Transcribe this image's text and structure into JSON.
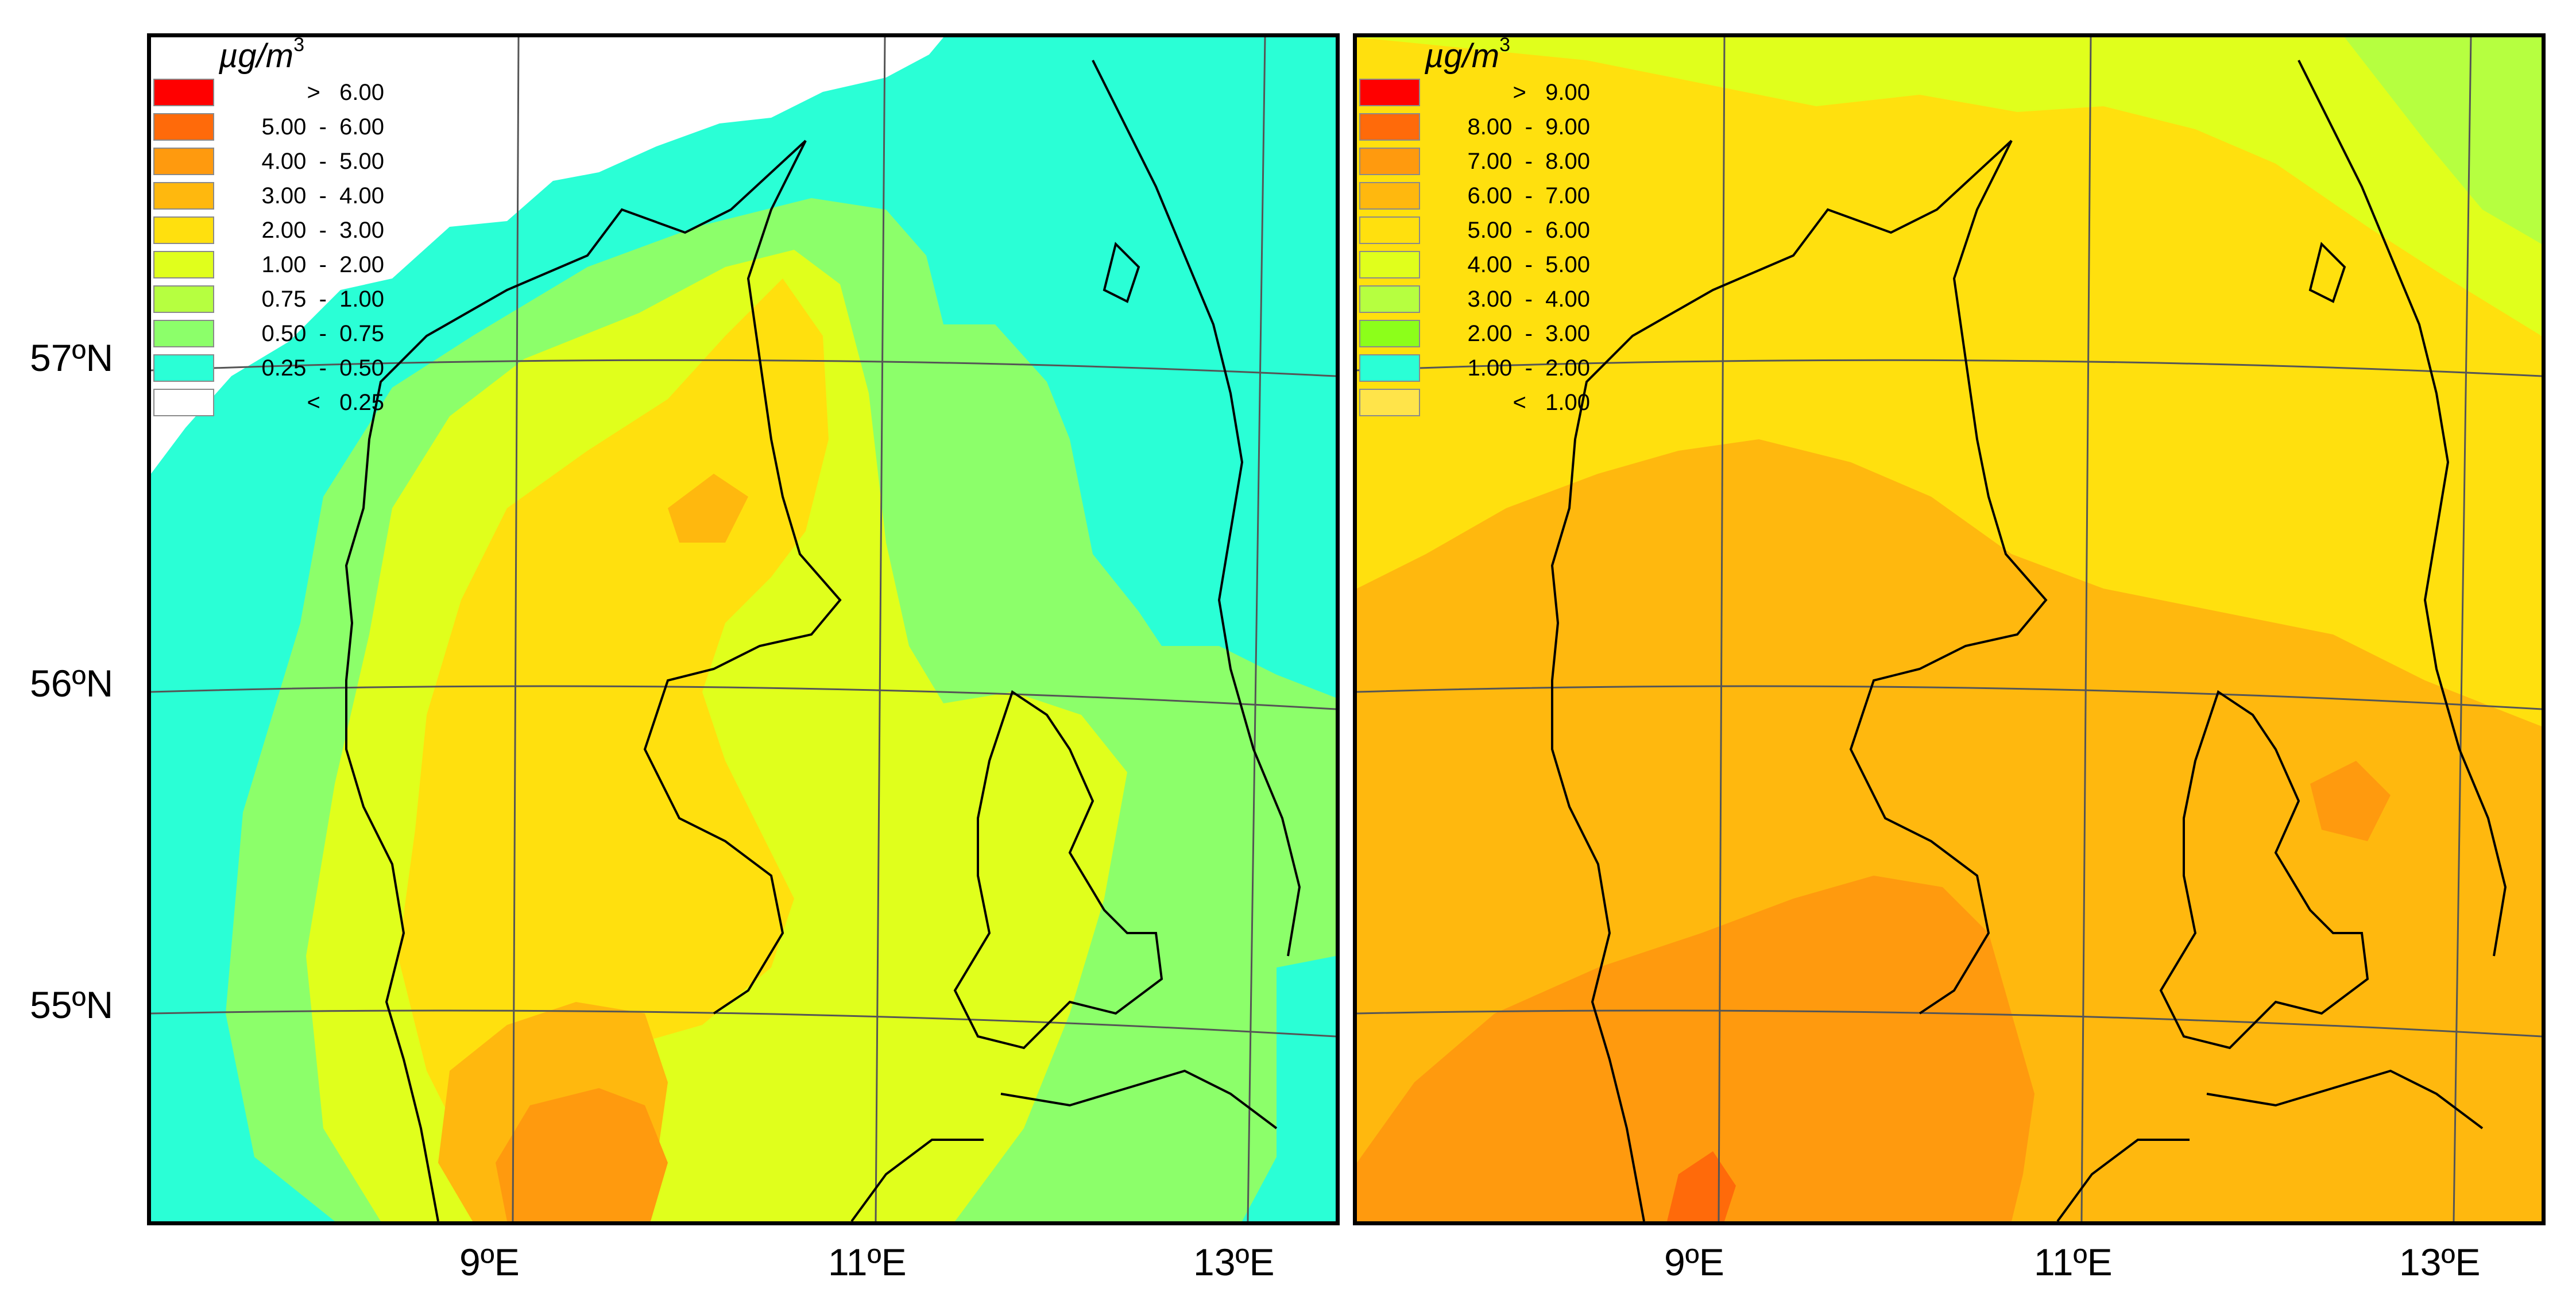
{
  "axes": {
    "lat_labels": [
      "57ºN",
      "56ºN",
      "55ºN"
    ],
    "lon_labels": [
      "9ºE",
      "11ºE",
      "13ºE"
    ]
  },
  "maps": [
    {
      "legend": {
        "unit": "µg/m",
        "unit_exp": "3",
        "classes": [
          {
            "label": ">   6.00",
            "color": "#ff0000"
          },
          {
            "label": "5.00  -  6.00",
            "color": "#ff6a0a"
          },
          {
            "label": "4.00  -  5.00",
            "color": "#ff9a0e"
          },
          {
            "label": "3.00  -  4.00",
            "color": "#ffb80e"
          },
          {
            "label": "2.00  -  3.00",
            "color": "#ffe00e"
          },
          {
            "label": "1.00  -  2.00",
            "color": "#e0ff1c"
          },
          {
            "label": "0.75  -  1.00",
            "color": "#b6ff40"
          },
          {
            "label": "0.50  -  0.75",
            "color": "#8cff6a"
          },
          {
            "label": "0.25  -  0.50",
            "color": "#2affd6"
          },
          {
            "label": "<   0.25",
            "color": "#ffffff"
          }
        ]
      }
    },
    {
      "legend": {
        "unit": "µg/m",
        "unit_exp": "3",
        "classes": [
          {
            "label": ">   9.00",
            "color": "#ff0000"
          },
          {
            "label": "8.00  -  9.00",
            "color": "#ff6a0a"
          },
          {
            "label": "7.00  -  8.00",
            "color": "#ff9a0e"
          },
          {
            "label": "6.00  -  7.00",
            "color": "#ffb80e"
          },
          {
            "label": "5.00  -  6.00",
            "color": "#ffe00e"
          },
          {
            "label": "4.00  -  5.00",
            "color": "#e0ff1c"
          },
          {
            "label": "3.00  -  4.00",
            "color": "#b6ff40"
          },
          {
            "label": "2.00  -  3.00",
            "color": "#8cff1a"
          },
          {
            "label": "1.00  -  2.00",
            "color": "#2affd6"
          },
          {
            "label": "<   1.00",
            "color": "#ffe44a"
          }
        ]
      }
    }
  ]
}
